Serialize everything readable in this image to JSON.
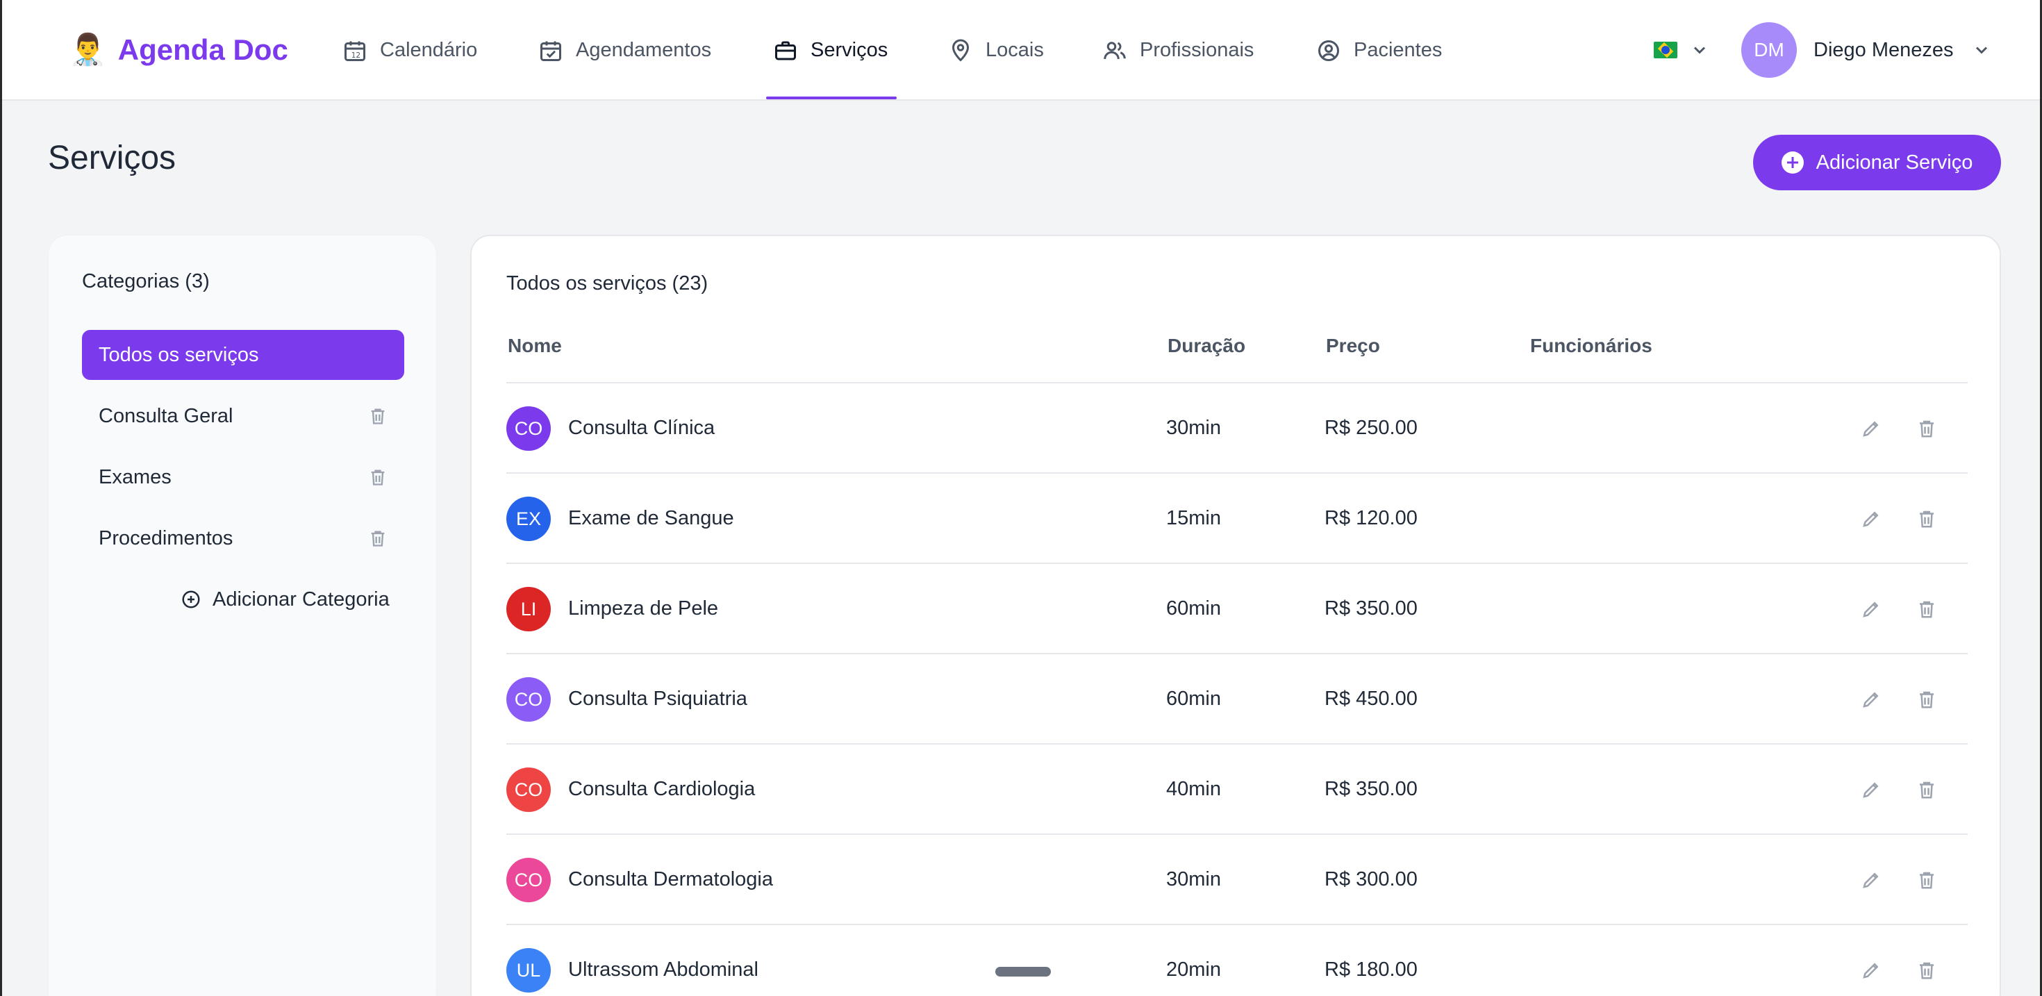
{
  "brand": {
    "emoji": "👨‍⚕️",
    "name": "Agenda Doc"
  },
  "nav": [
    {
      "label": "Calendário"
    },
    {
      "label": "Agendamentos"
    },
    {
      "label": "Serviços"
    },
    {
      "label": "Locais"
    },
    {
      "label": "Profissionais"
    },
    {
      "label": "Pacientes"
    }
  ],
  "active_nav": "Serviços",
  "language": {
    "icon": "brazil-flag-icon"
  },
  "user": {
    "initials": "DM",
    "name": "Diego Menezes"
  },
  "page": {
    "title": "Serviços",
    "add_button": "Adicionar Serviço"
  },
  "categories": {
    "title": "Categorias (3)",
    "items": [
      {
        "label": "Todos os serviços",
        "active": true
      },
      {
        "label": "Consulta Geral"
      },
      {
        "label": "Exames"
      },
      {
        "label": "Procedimentos"
      }
    ],
    "add_label": "Adicionar Categoria"
  },
  "services": {
    "title": "Todos os serviços (23)",
    "columns": [
      "Nome",
      "Duração",
      "Preço",
      "Funcionários"
    ],
    "rows": [
      {
        "initials": "CO",
        "color": "#7c3aed",
        "name": "Consulta Clínica",
        "duration": "30min",
        "price": "R$ 250.00"
      },
      {
        "initials": "EX",
        "color": "#2563eb",
        "name": "Exame de Sangue",
        "duration": "15min",
        "price": "R$ 120.00"
      },
      {
        "initials": "LI",
        "color": "#dc2626",
        "name": "Limpeza de Pele",
        "duration": "60min",
        "price": "R$ 350.00"
      },
      {
        "initials": "CO",
        "color": "#8b5cf6",
        "name": "Consulta Psiquiatria",
        "duration": "60min",
        "price": "R$ 450.00"
      },
      {
        "initials": "CO",
        "color": "#ef4444",
        "name": "Consulta Cardiologia",
        "duration": "40min",
        "price": "R$ 350.00"
      },
      {
        "initials": "CO",
        "color": "#ec4899",
        "name": "Consulta Dermatologia",
        "duration": "30min",
        "price": "R$ 300.00"
      },
      {
        "initials": "UL",
        "color": "#3b82f6",
        "name": "Ultrassom Abdominal",
        "duration": "20min",
        "price": "R$ 180.00"
      }
    ]
  },
  "colors": {
    "accent": "#7c3aed",
    "background": "#f3f4f6"
  }
}
